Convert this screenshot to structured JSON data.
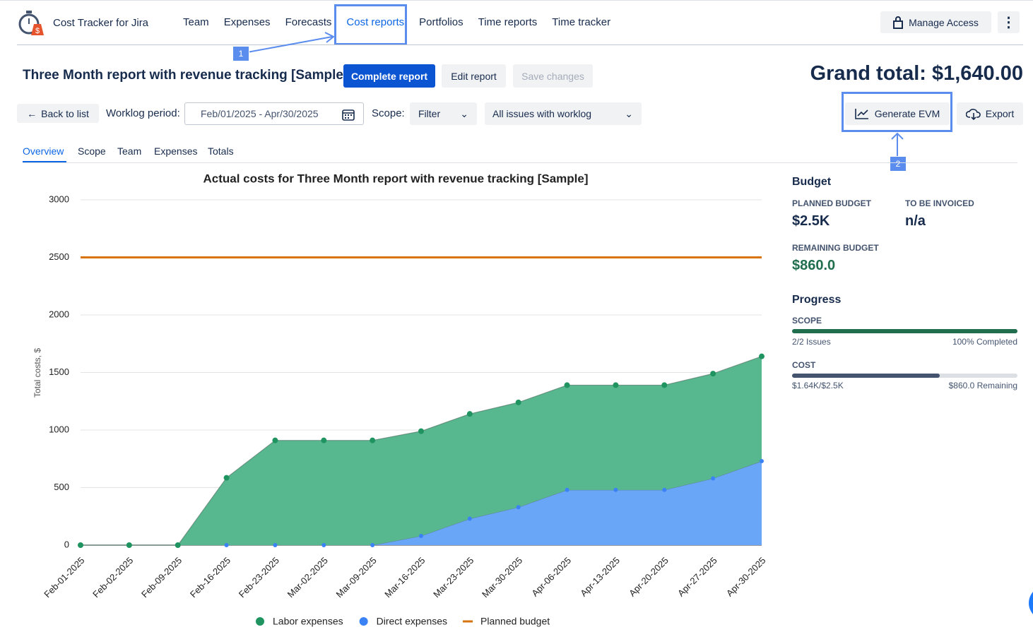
{
  "header": {
    "app_name": "Cost Tracker for Jira",
    "nav": [
      "Team",
      "Expenses",
      "Forecasts",
      "Cost reports",
      "Portfolios",
      "Time reports",
      "Time tracker"
    ],
    "manage_access": "Manage Access"
  },
  "callouts": [
    "1",
    "2"
  ],
  "report": {
    "title": "Three Month report with revenue tracking [Sample]",
    "buttons": [
      "Complete report",
      "Edit report",
      "Save changes"
    ],
    "grand_total": "Grand total: $1,640.00",
    "back": "Back to list",
    "worklog_label": "Worklog period:",
    "worklog_value": "Feb/01/2025 - Apr/30/2025",
    "scope_label": "Scope:",
    "scope_filter": "Filter",
    "scope_select": "All issues with worklog",
    "generate_evm": "Generate EVM",
    "export": "Export"
  },
  "tabs": [
    "Overview",
    "Scope",
    "Team",
    "Expenses",
    "Totals"
  ],
  "chart_data": {
    "type": "area",
    "title": "Actual costs for Three Month report with revenue tracking [Sample]",
    "y_label": "Total costs, $",
    "stacked": true,
    "categories": [
      "Feb-01-2025",
      "Feb-02-2025",
      "Feb-09-2025",
      "Feb-16-2025",
      "Feb-23-2025",
      "Mar-02-2025",
      "Mar-09-2025",
      "Mar-16-2025",
      "Mar-23-2025",
      "Mar-30-2025",
      "Apr-06-2025",
      "Apr-13-2025",
      "Apr-20-2025",
      "Apr-27-2025",
      "Apr-30-2025"
    ],
    "series": [
      {
        "name": "Labor expenses",
        "type": "area",
        "color": "#57b88f",
        "marker_color": "#1f9460",
        "values": [
          0,
          0,
          0,
          585,
          910,
          910,
          910,
          910,
          910,
          910,
          910,
          910,
          910,
          910,
          910
        ]
      },
      {
        "name": "Direct expenses",
        "type": "area",
        "color": "#69a6f8",
        "marker_color": "#3b82f6",
        "values": [
          0,
          0,
          0,
          0,
          0,
          0,
          0,
          80,
          230,
          330,
          480,
          480,
          480,
          580,
          730
        ]
      },
      {
        "name": "Planned budget",
        "type": "line",
        "color": "#d9730d",
        "values": [
          2500,
          2500,
          2500,
          2500,
          2500,
          2500,
          2500,
          2500,
          2500,
          2500,
          2500,
          2500,
          2500,
          2500,
          2500
        ]
      }
    ],
    "ylim": [
      0,
      3000
    ],
    "yticks": [
      0,
      500,
      1000,
      1500,
      2000,
      2500,
      3000
    ],
    "grid": true,
    "legend": "bottom"
  },
  "budget": {
    "title": "Budget",
    "planned_label": "PLANNED BUDGET",
    "planned_value": "$2.5K",
    "invoiced_label": "TO BE INVOICED",
    "invoiced_value": "n/a",
    "remaining_label": "REMAINING BUDGET",
    "remaining_value": "$860.0"
  },
  "progress": {
    "title": "Progress",
    "scope": {
      "label": "SCOPE",
      "left": "2/2 Issues",
      "right": "100% Completed",
      "value": 2,
      "max": 2
    },
    "cost": {
      "label": "COST",
      "left": "$1.64K/$2.5K",
      "right": "$860.0 Remaining",
      "value": 1640,
      "max": 2500
    }
  }
}
